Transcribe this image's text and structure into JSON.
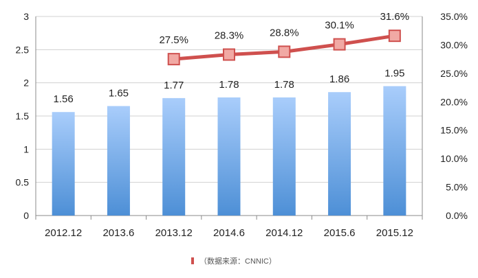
{
  "chart_data": {
    "type": "bar",
    "categories": [
      "2012.12",
      "2013.6",
      "2013.12",
      "2014.6",
      "2014.12",
      "2015.6",
      "2015.12"
    ],
    "series": [
      {
        "type": "bar",
        "axis": "left",
        "values": [
          1.56,
          1.65,
          1.77,
          1.78,
          1.78,
          1.86,
          1.95
        ],
        "labels": [
          "1.56",
          "1.65",
          "1.77",
          "1.78",
          "1.78",
          "1.86",
          "1.95"
        ],
        "color_top": "#a9cdfb",
        "color_bottom": "#4d8fd6"
      },
      {
        "type": "line",
        "axis": "right",
        "values": [
          null,
          null,
          27.5,
          28.3,
          28.8,
          30.1,
          31.6
        ],
        "labels": [
          "",
          "",
          "27.5%",
          "28.3%",
          "28.8%",
          "30.1%",
          "31.6%"
        ],
        "color": "#cf504e",
        "marker_fill": "#f1a9a4"
      }
    ],
    "y_left": {
      "min": 0,
      "max": 3,
      "ticks": [
        0,
        0.5,
        1,
        1.5,
        2,
        2.5,
        3
      ],
      "tick_labels": [
        "0",
        "0.5",
        "1",
        "1.5",
        "2",
        "2.5",
        "3"
      ]
    },
    "y_right": {
      "min": 0,
      "max": 35,
      "ticks": [
        0,
        5,
        10,
        15,
        20,
        25,
        30,
        35
      ],
      "tick_labels": [
        "0.0%",
        "5.0%",
        "10.0%",
        "15.0%",
        "20.0%",
        "25.0%",
        "30.0%",
        "35.0%"
      ]
    },
    "grid": true,
    "grid_color": "#d0d0d0",
    "legend": {
      "placement": "bottom",
      "text": "（数据来源：CNNIC）",
      "swatch_color": "#cf504e"
    }
  }
}
